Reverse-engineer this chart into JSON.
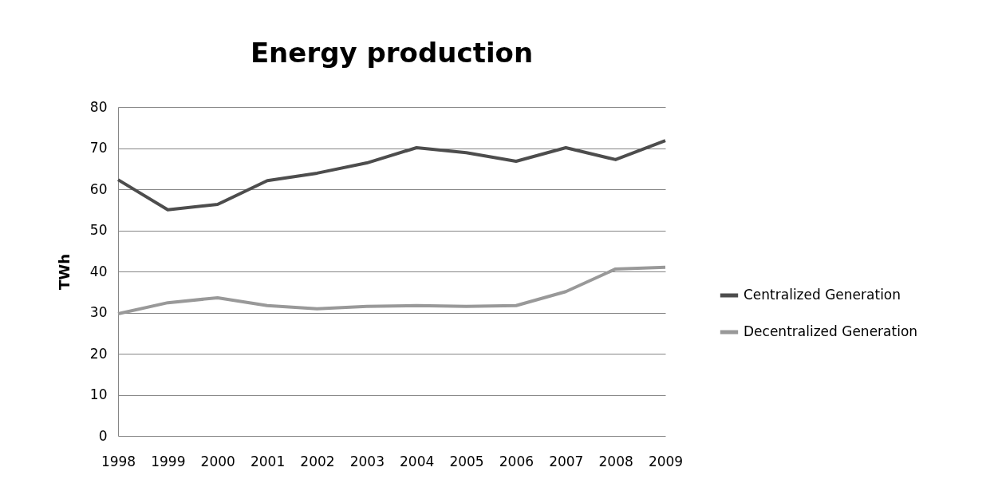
{
  "chart_data": {
    "type": "line",
    "title": "Energy production",
    "ylabel": "TWh",
    "categories": [
      "1998",
      "1999",
      "2000",
      "2001",
      "2002",
      "2003",
      "2004",
      "2005",
      "2006",
      "2007",
      "2008",
      "2009"
    ],
    "series": [
      {
        "name": "Centralized Generation",
        "color": "#4d4d4d",
        "values": [
          62.3,
          55,
          56.3,
          62.1,
          63.9,
          66.4,
          70.1,
          68.9,
          66.8,
          70.1,
          67.2,
          71.8
        ]
      },
      {
        "name": "Decentralized Generation",
        "color": "#999999",
        "values": [
          29.7,
          32.4,
          33.6,
          31.7,
          30.9,
          31.5,
          31.7,
          31.5,
          31.7,
          35.1,
          40.6,
          41.0
        ]
      }
    ],
    "ylim": [
      0,
      80
    ],
    "yticks": [
      0,
      10,
      20,
      30,
      40,
      50,
      60,
      70,
      80
    ],
    "grid": "y",
    "legend": "right",
    "marker": "none",
    "line_style": "solid"
  }
}
